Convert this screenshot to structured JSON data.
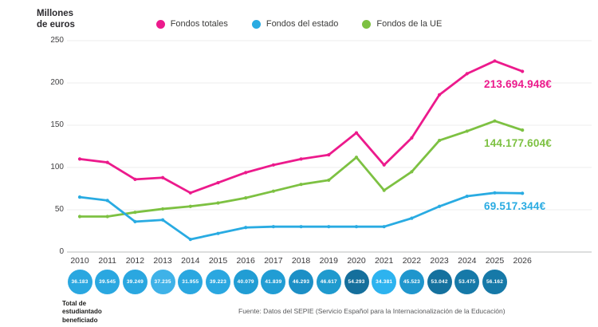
{
  "header": {
    "y_axis_title_line1": "Millones",
    "y_axis_title_line2": "de euros"
  },
  "legend": {
    "items": [
      {
        "label": "Fondos totales",
        "color": "#EC1A8C"
      },
      {
        "label": "Fondos del estado",
        "color": "#29ABE2"
      },
      {
        "label": "Fondos de la UE",
        "color": "#7DC142"
      }
    ]
  },
  "chart_data": {
    "type": "line",
    "title": "",
    "ylabel": "Millones de euros",
    "xlabel": "",
    "x": [
      2010,
      2011,
      2012,
      2013,
      2014,
      2015,
      2016,
      2017,
      2018,
      2019,
      2020,
      2021,
      2022,
      2023,
      2024,
      2025,
      2026
    ],
    "yticks": [
      0,
      50,
      100,
      150,
      200,
      250
    ],
    "ylim": [
      0,
      250
    ],
    "grid": true,
    "legend_position": "top",
    "series": [
      {
        "name": "Fondos totales",
        "color": "#EC1A8C",
        "values": [
          110,
          106,
          86,
          88,
          70,
          82,
          94,
          103,
          110,
          115,
          141,
          103,
          135,
          186,
          211,
          226,
          213.7
        ],
        "final_label": "213.694.948€"
      },
      {
        "name": "Fondos del estado",
        "color": "#29ABE2",
        "values": [
          65,
          61,
          36,
          38,
          15,
          22,
          29,
          30,
          30,
          30,
          30,
          30,
          40,
          54,
          66,
          70,
          69.5
        ],
        "final_label": "69.517.344€"
      },
      {
        "name": "Fondos de la UE",
        "color": "#7DC142",
        "values": [
          42,
          42,
          47,
          51,
          54,
          58,
          64,
          72,
          80,
          85,
          112,
          73,
          95,
          132,
          143,
          155,
          144.2
        ],
        "final_label": "144.177.604€"
      }
    ]
  },
  "students": {
    "label_lines": [
      "Total de",
      "estudiantado",
      "beneficiado"
    ],
    "circles": [
      {
        "year": "2010",
        "value": "36.183",
        "color": "#2AA7E0"
      },
      {
        "year": "2011",
        "value": "39.545",
        "color": "#2AA7E0"
      },
      {
        "year": "2012",
        "value": "39.249",
        "color": "#2AA7E0"
      },
      {
        "year": "2013",
        "value": "37.235",
        "color": "#3FB2E8"
      },
      {
        "year": "2014",
        "value": "31.955",
        "color": "#2AA7E0"
      },
      {
        "year": "2015",
        "value": "39.223",
        "color": "#2AA7E0"
      },
      {
        "year": "2016",
        "value": "40.079",
        "color": "#219DD4"
      },
      {
        "year": "2017",
        "value": "41.839",
        "color": "#219DD4"
      },
      {
        "year": "2018",
        "value": "46.293",
        "color": "#1C8FC6"
      },
      {
        "year": "2019",
        "value": "46.617",
        "color": "#1F9ACE"
      },
      {
        "year": "2020",
        "value": "54.293",
        "color": "#156F9C"
      },
      {
        "year": "2021",
        "value": "34.381",
        "color": "#2DB3EF"
      },
      {
        "year": "2022",
        "value": "45.523",
        "color": "#1F96CD"
      },
      {
        "year": "2023",
        "value": "53.042",
        "color": "#15719E"
      },
      {
        "year": "2024",
        "value": "53.475",
        "color": "#1679A8"
      },
      {
        "year": "2025",
        "value": "56.162",
        "color": "#1679A8"
      }
    ]
  },
  "source": "Fuente: Datos del SEPIE (Servicio Español para la Internacionalización de la Educación)"
}
